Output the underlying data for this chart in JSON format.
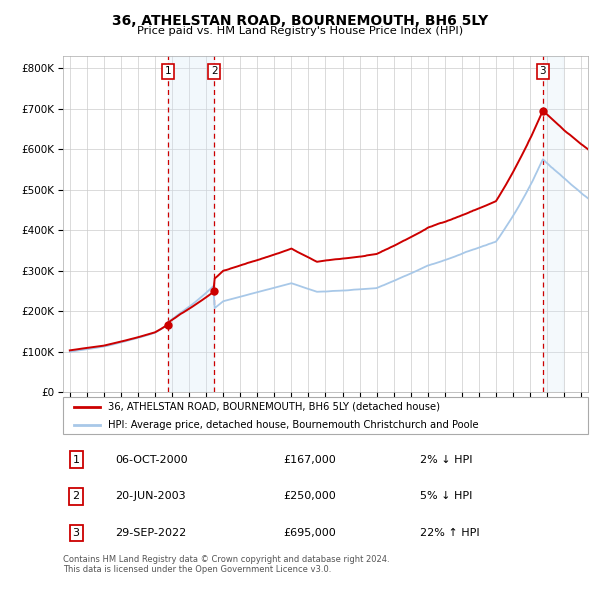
{
  "title": "36, ATHELSTAN ROAD, BOURNEMOUTH, BH6 5LY",
  "subtitle": "Price paid vs. HM Land Registry's House Price Index (HPI)",
  "legend_line1": "36, ATHELSTAN ROAD, BOURNEMOUTH, BH6 5LY (detached house)",
  "legend_line2": "HPI: Average price, detached house, Bournemouth Christchurch and Poole",
  "transactions": [
    {
      "num": 1,
      "date": "06-OCT-2000",
      "price": 167000,
      "pct": "2%",
      "dir": "↓",
      "year": 2000.77
    },
    {
      "num": 2,
      "date": "20-JUN-2003",
      "price": 250000,
      "pct": "5%",
      "dir": "↓",
      "year": 2003.47
    },
    {
      "num": 3,
      "date": "29-SEP-2022",
      "price": 695000,
      "pct": "22%",
      "dir": "↑",
      "year": 2022.75
    }
  ],
  "footer_line1": "Contains HM Land Registry data © Crown copyright and database right 2024.",
  "footer_line2": "This data is licensed under the Open Government Licence v3.0.",
  "hpi_color": "#a8c8e8",
  "price_color": "#cc0000",
  "marker_color": "#cc0000",
  "dashed_color": "#cc0000",
  "shade_color": "#d6e8f7",
  "background_color": "#ffffff",
  "grid_color": "#cccccc",
  "ylim": [
    0,
    830000
  ],
  "xlim_start": 1994.6,
  "xlim_end": 2025.4,
  "y_ticks": [
    0,
    100000,
    200000,
    300000,
    400000,
    500000,
    600000,
    700000,
    800000
  ],
  "x_ticks": [
    1995,
    1996,
    1997,
    1998,
    1999,
    2000,
    2001,
    2002,
    2003,
    2004,
    2005,
    2006,
    2007,
    2008,
    2009,
    2010,
    2011,
    2012,
    2013,
    2014,
    2015,
    2016,
    2017,
    2018,
    2019,
    2020,
    2021,
    2022,
    2023,
    2024,
    2025
  ]
}
